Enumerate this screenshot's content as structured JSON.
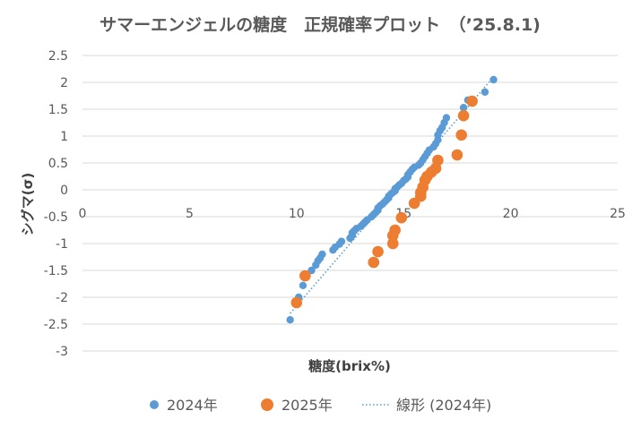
{
  "chart_data": {
    "type": "scatter",
    "title": "サマーエンジェルの糖度　正規確率プロット　（’25.8.1)",
    "xlabel": "糖度(brix%)",
    "ylabel": "シグマ(σ)",
    "xlim": [
      0,
      25
    ],
    "ylim": [
      -3,
      2.5
    ],
    "x_ticks": [
      0,
      5,
      10,
      15,
      20,
      25
    ],
    "y_ticks": [
      2.5,
      2,
      1.5,
      1,
      0.5,
      0,
      -0.5,
      -1,
      -1.5,
      -2,
      -2.5,
      -3
    ],
    "grid": "horizontal",
    "legend_position": "bottom",
    "colors": {
      "series_2024": "#5B9BD5",
      "series_2025": "#ED7D31",
      "trend": "#5B9BD5"
    },
    "series": [
      {
        "name": "2024年",
        "marker": "small-circle",
        "points": [
          [
            9.7,
            -2.42
          ],
          [
            10.1,
            -2.0
          ],
          [
            10.3,
            -1.78
          ],
          [
            10.7,
            -1.5
          ],
          [
            10.9,
            -1.4
          ],
          [
            11.0,
            -1.32
          ],
          [
            11.1,
            -1.27
          ],
          [
            11.2,
            -1.2
          ],
          [
            11.7,
            -1.12
          ],
          [
            11.8,
            -1.07
          ],
          [
            12.0,
            -1.01
          ],
          [
            12.1,
            -0.96
          ],
          [
            12.5,
            -0.9
          ],
          [
            12.6,
            -0.85
          ],
          [
            12.6,
            -0.8
          ],
          [
            12.7,
            -0.76
          ],
          [
            12.8,
            -0.72
          ],
          [
            13.0,
            -0.68
          ],
          [
            13.1,
            -0.64
          ],
          [
            13.2,
            -0.6
          ],
          [
            13.3,
            -0.56
          ],
          [
            13.5,
            -0.5
          ],
          [
            13.6,
            -0.46
          ],
          [
            13.7,
            -0.42
          ],
          [
            13.8,
            -0.38
          ],
          [
            13.8,
            -0.34
          ],
          [
            13.9,
            -0.3
          ],
          [
            14.0,
            -0.27
          ],
          [
            14.1,
            -0.23
          ],
          [
            14.2,
            -0.19
          ],
          [
            14.3,
            -0.15
          ],
          [
            14.3,
            -0.12
          ],
          [
            14.4,
            -0.08
          ],
          [
            14.5,
            -0.05
          ],
          [
            14.6,
            -0.02
          ],
          [
            14.6,
            0.02
          ],
          [
            14.7,
            0.05
          ],
          [
            14.8,
            0.09
          ],
          [
            14.9,
            0.12
          ],
          [
            15.0,
            0.17
          ],
          [
            15.1,
            0.2
          ],
          [
            15.2,
            0.24
          ],
          [
            15.2,
            0.28
          ],
          [
            15.3,
            0.33
          ],
          [
            15.4,
            0.38
          ],
          [
            15.5,
            0.42
          ],
          [
            15.7,
            0.46
          ],
          [
            15.8,
            0.5
          ],
          [
            15.9,
            0.56
          ],
          [
            16.0,
            0.62
          ],
          [
            16.1,
            0.68
          ],
          [
            16.2,
            0.74
          ],
          [
            16.4,
            0.8
          ],
          [
            16.5,
            0.86
          ],
          [
            16.6,
            0.93
          ],
          [
            16.6,
            1.02
          ],
          [
            16.7,
            1.1
          ],
          [
            16.8,
            1.16
          ],
          [
            16.9,
            1.25
          ],
          [
            17.0,
            1.34
          ],
          [
            17.8,
            1.53
          ],
          [
            18.0,
            1.67
          ],
          [
            18.8,
            1.82
          ],
          [
            19.2,
            2.05
          ]
        ]
      },
      {
        "name": "2025年",
        "marker": "large-circle",
        "points": [
          [
            10.0,
            -2.1
          ],
          [
            10.4,
            -1.6
          ],
          [
            13.6,
            -1.35
          ],
          [
            13.8,
            -1.15
          ],
          [
            14.5,
            -1.0
          ],
          [
            14.5,
            -0.85
          ],
          [
            14.6,
            -0.75
          ],
          [
            14.9,
            -0.52
          ],
          [
            15.5,
            -0.25
          ],
          [
            15.8,
            -0.12
          ],
          [
            15.8,
            -0.05
          ],
          [
            15.9,
            0.05
          ],
          [
            16.0,
            0.18
          ],
          [
            16.1,
            0.25
          ],
          [
            16.3,
            0.33
          ],
          [
            16.5,
            0.4
          ],
          [
            16.6,
            0.55
          ],
          [
            17.5,
            0.65
          ],
          [
            17.7,
            1.02
          ],
          [
            17.8,
            1.38
          ],
          [
            18.2,
            1.65
          ]
        ]
      }
    ],
    "trendline": {
      "name": "線形 (2024年)",
      "style": "dotted",
      "from": [
        9.7,
        -2.3
      ],
      "to": [
        19.2,
        2.1
      ]
    }
  }
}
